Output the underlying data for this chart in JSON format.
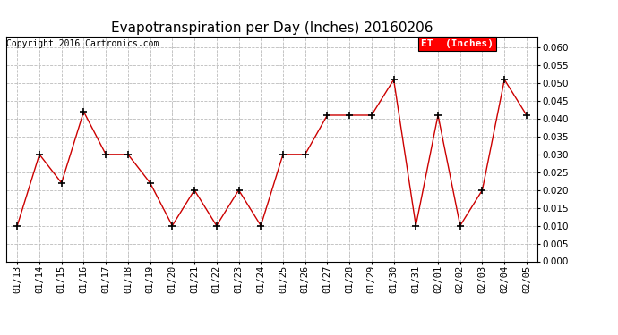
{
  "title": "Evapotranspiration per Day (Inches) 20160206",
  "copyright_text": "Copyright 2016 Cartronics.com",
  "legend_label": "ET  (Inches)",
  "legend_bg": "#ff0000",
  "legend_text_color": "#ffffff",
  "dates": [
    "01/13",
    "01/14",
    "01/15",
    "01/16",
    "01/17",
    "01/18",
    "01/19",
    "01/20",
    "01/21",
    "01/22",
    "01/23",
    "01/24",
    "01/25",
    "01/26",
    "01/27",
    "01/28",
    "01/29",
    "01/30",
    "01/31",
    "02/01",
    "02/02",
    "02/03",
    "02/04",
    "02/05"
  ],
  "values": [
    0.01,
    0.03,
    0.022,
    0.042,
    0.03,
    0.03,
    0.022,
    0.01,
    0.02,
    0.01,
    0.02,
    0.01,
    0.03,
    0.03,
    0.041,
    0.041,
    0.041,
    0.051,
    0.01,
    0.041,
    0.01,
    0.02,
    0.051,
    0.041
  ],
  "line_color": "#cc0000",
  "marker": "+",
  "marker_color": "#000000",
  "ylim": [
    0.0,
    0.063
  ],
  "yticks": [
    0.0,
    0.005,
    0.01,
    0.015,
    0.02,
    0.025,
    0.03,
    0.035,
    0.04,
    0.045,
    0.05,
    0.055,
    0.06
  ],
  "grid_color": "#bbbbbb",
  "grid_linestyle": "--",
  "bg_color": "#ffffff",
  "title_fontsize": 11,
  "copyright_fontsize": 7,
  "tick_fontsize": 7.5,
  "legend_fontsize": 8
}
